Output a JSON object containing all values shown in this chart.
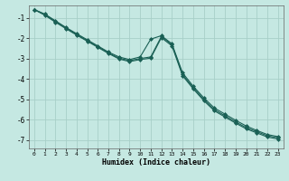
{
  "xlabel": "Humidex (Indice chaleur)",
  "bg_color": "#c5e8e2",
  "grid_color": "#a8cfc8",
  "line_color": "#1a6055",
  "xlim": [
    -0.5,
    23.5
  ],
  "ylim": [
    -7.4,
    -0.4
  ],
  "xticks": [
    0,
    1,
    2,
    3,
    4,
    5,
    6,
    7,
    8,
    9,
    10,
    11,
    12,
    13,
    14,
    15,
    16,
    17,
    18,
    19,
    20,
    21,
    22,
    23
  ],
  "yticks": [
    -7,
    -6,
    -5,
    -4,
    -3,
    -2,
    -1
  ],
  "line1_x": [
    0,
    1,
    2,
    3,
    4,
    5,
    6,
    7,
    8,
    9,
    10,
    11,
    12,
    13,
    14,
    15,
    16,
    17,
    18,
    19,
    20,
    21,
    22,
    23
  ],
  "line1_y": [
    -0.6,
    -0.82,
    -1.15,
    -1.48,
    -1.78,
    -2.08,
    -2.38,
    -2.68,
    -2.92,
    -3.05,
    -2.92,
    -2.05,
    -1.88,
    -2.28,
    -3.7,
    -4.35,
    -4.92,
    -5.42,
    -5.72,
    -6.02,
    -6.3,
    -6.52,
    -6.72,
    -6.82
  ],
  "line2_x": [
    0,
    1,
    2,
    3,
    4,
    5,
    6,
    7,
    8,
    9,
    10,
    11,
    12,
    13,
    14,
    15,
    16,
    17,
    18,
    19,
    20,
    21,
    22,
    23
  ],
  "line2_y": [
    -0.6,
    -0.85,
    -1.18,
    -1.5,
    -1.82,
    -2.12,
    -2.42,
    -2.72,
    -2.98,
    -3.1,
    -3.0,
    -2.92,
    -1.92,
    -2.32,
    -3.78,
    -4.42,
    -5.0,
    -5.5,
    -5.8,
    -6.1,
    -6.38,
    -6.58,
    -6.78,
    -6.88
  ],
  "line3_x": [
    0,
    1,
    2,
    3,
    4,
    5,
    6,
    7,
    8,
    9,
    10,
    11,
    12,
    13,
    14,
    15,
    16,
    17,
    18,
    19,
    20,
    21,
    22,
    23
  ],
  "line3_y": [
    -0.6,
    -0.88,
    -1.22,
    -1.54,
    -1.85,
    -2.15,
    -2.45,
    -2.75,
    -3.02,
    -3.15,
    -3.05,
    -2.98,
    -1.98,
    -2.38,
    -3.84,
    -4.48,
    -5.06,
    -5.56,
    -5.86,
    -6.16,
    -6.44,
    -6.64,
    -6.84,
    -6.94
  ]
}
